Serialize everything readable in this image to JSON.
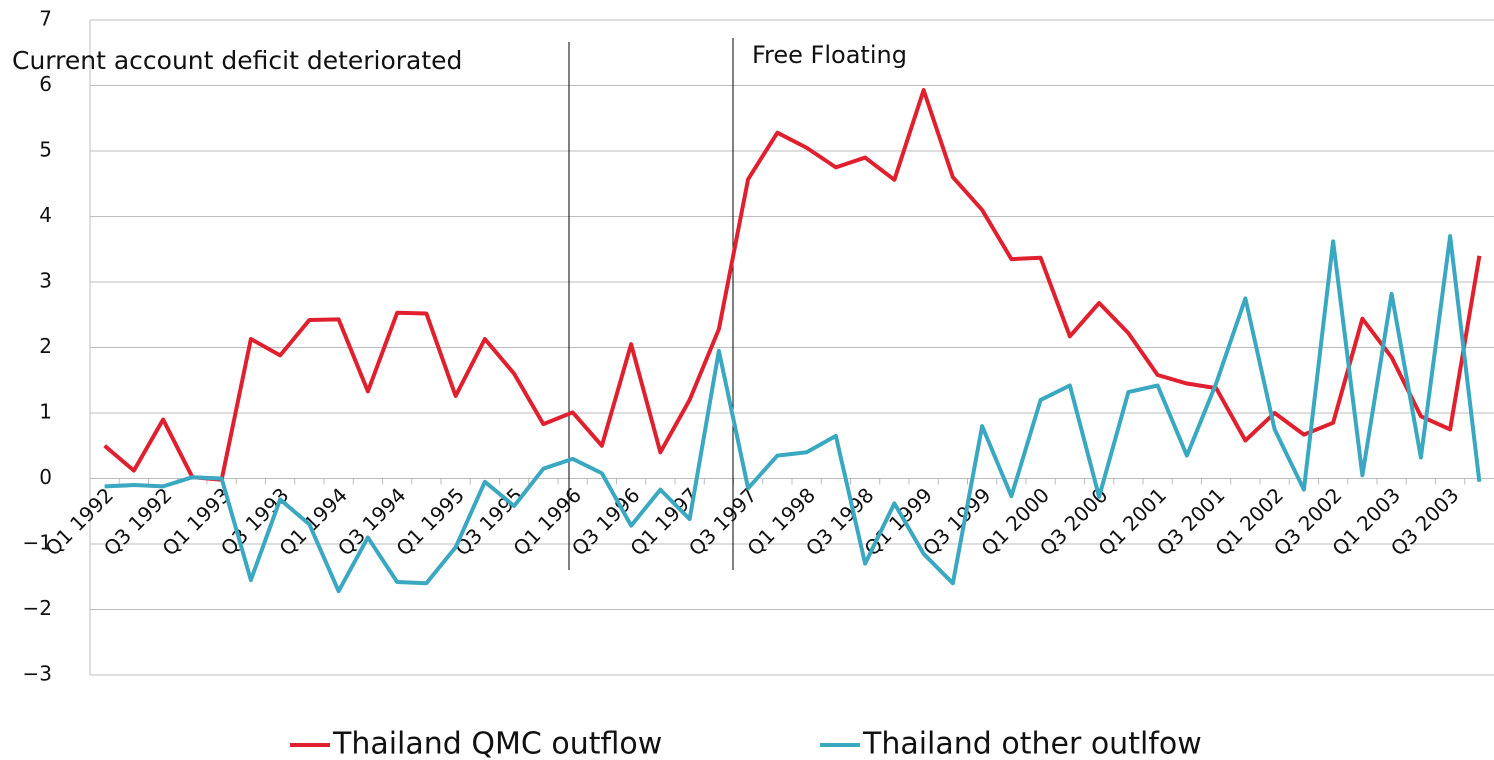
{
  "chart_data": {
    "type": "line",
    "categories": [
      "Q1 1992",
      null,
      "Q3 1992",
      null,
      "Q1 1993",
      null,
      "Q3 1993",
      null,
      "Q1 1994",
      null,
      "Q3 1994",
      null,
      "Q1 1995",
      null,
      "Q3 1995",
      null,
      "Q1 1996",
      null,
      "Q3 1996",
      null,
      "Q1 1997",
      null,
      "Q3 1997",
      null,
      "Q1 1998",
      null,
      "Q3 1998",
      null,
      "Q1 1999",
      null,
      "Q3 1999",
      null,
      "Q1 2000",
      null,
      "Q3 2000",
      null,
      "Q1 2001",
      null,
      "Q3 2001",
      null,
      "Q1 2002",
      null,
      "Q3 2002",
      null,
      "Q1 2003",
      null,
      "Q3 2003",
      null
    ],
    "series": [
      {
        "name": "Thailand QMC outflow",
        "color": "#e0202e",
        "values": [
          0.5,
          0.12,
          0.9,
          0.02,
          -0.02,
          2.13,
          1.88,
          2.42,
          2.43,
          1.33,
          2.53,
          2.52,
          1.26,
          2.13,
          1.6,
          0.83,
          1.01,
          0.5,
          2.05,
          0.4,
          1.2,
          2.28,
          4.57,
          5.28,
          5.05,
          4.75,
          4.9,
          4.56,
          5.93,
          4.6,
          4.1,
          3.35,
          3.37,
          2.17,
          2.68,
          2.22,
          1.58,
          1.45,
          1.38,
          0.58,
          1.0,
          0.67,
          0.85,
          2.44,
          1.85,
          0.95,
          0.75,
          3.4
        ]
      },
      {
        "name": "Thailand other outlfow",
        "color": "#3aa8c1",
        "values": [
          -0.12,
          -0.1,
          -0.12,
          0.02,
          0.0,
          -1.55,
          -0.32,
          -0.7,
          -1.72,
          -0.9,
          -1.58,
          -1.6,
          -1.05,
          -0.05,
          -0.42,
          0.15,
          0.3,
          0.08,
          -0.72,
          -0.17,
          -0.62,
          1.95,
          -0.15,
          0.35,
          0.4,
          0.65,
          -1.3,
          -0.38,
          -1.15,
          -1.6,
          0.8,
          -0.27,
          1.2,
          1.42,
          -0.28,
          1.32,
          1.42,
          0.35,
          1.45,
          2.75,
          0.75,
          -0.17,
          3.62,
          0.05,
          2.82,
          0.32,
          3.7,
          -0.05
        ]
      }
    ],
    "annotations": [
      {
        "text": "Current account deficit deteriorated"
      },
      {
        "text": "Free Floating"
      }
    ],
    "ylim": [
      -3,
      7
    ],
    "yticks": [
      {
        "value": -3,
        "label": "−3"
      },
      {
        "value": -2,
        "label": "−2"
      },
      {
        "value": -1,
        "label": "−1"
      },
      0,
      1,
      2,
      3,
      4,
      5,
      6,
      7
    ],
    "grid": true,
    "legend": "bottom"
  }
}
